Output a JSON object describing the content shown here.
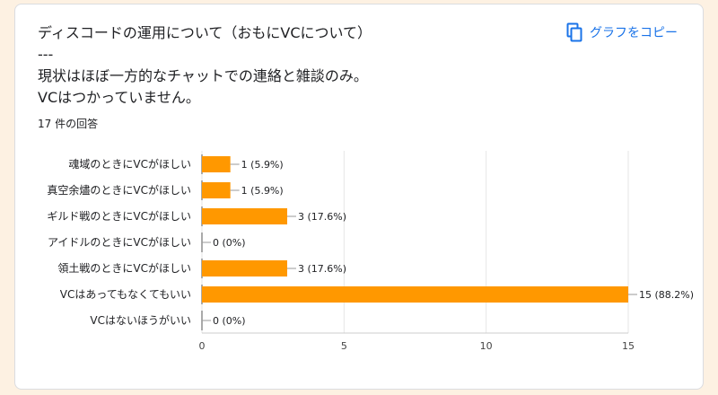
{
  "card": {
    "title": "ディスコードの運用について（おもにVCについて）\n---\n現状はほぼ一方的なチャットでの連絡と雑談のみ。\nVCはつかっていません。",
    "response_count": "17 件の回答",
    "copy_button_label": "グラフをコピー",
    "copy_icon": "copy-icon"
  },
  "colors": {
    "bar": "#ff9800",
    "accent": "#1a73e8"
  },
  "chart_data": {
    "type": "bar",
    "orientation": "horizontal",
    "categories": [
      "魂域のときにVCがほしい",
      "真空余燼のときにVCがほしい",
      "ギルド戦のときにVCがほしい",
      "アイドルのときにVCがほしい",
      "領土戦のときにVCがほしい",
      "VCはあってもなくてもいい",
      "VCはないほうがいい"
    ],
    "values": [
      1,
      1,
      3,
      0,
      3,
      15,
      0
    ],
    "value_labels": [
      "1 (5.9%)",
      "1 (5.9%)",
      "3 (17.6%)",
      "0 (0%)",
      "3 (17.6%)",
      "15 (88.2%)",
      "0 (0%)"
    ],
    "xlim": [
      0,
      15
    ],
    "xticks": [
      0,
      5,
      10,
      15
    ],
    "grid": true
  }
}
